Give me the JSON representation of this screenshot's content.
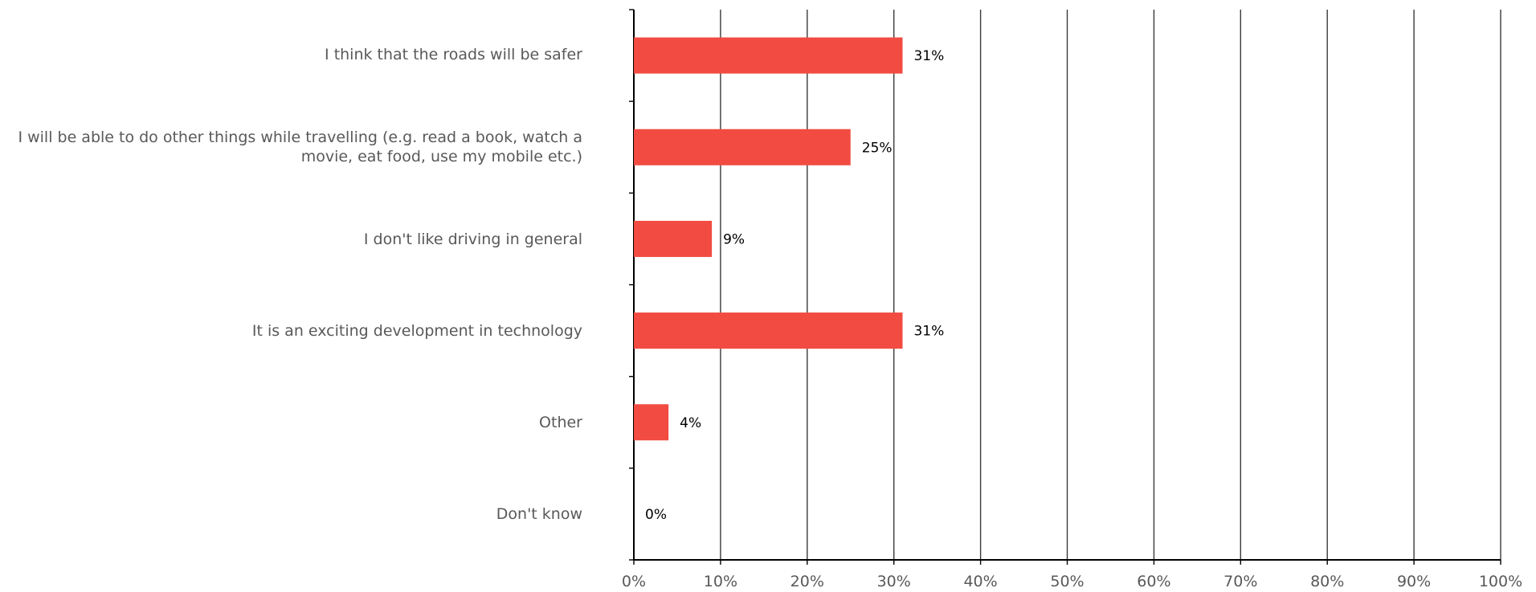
{
  "chart_data": {
    "type": "bar",
    "orientation": "horizontal",
    "categories": [
      "I think that the roads will be safer",
      "I will be able to do other things while travelling (e.g. read a book, watch a movie, eat food, use my mobile etc.)",
      "I don't like driving in general",
      "It is an exciting development in technology",
      "Other",
      "Don't know"
    ],
    "values": [
      31,
      25,
      9,
      31,
      4,
      0
    ],
    "data_labels": [
      "31%",
      "25%",
      "9%",
      "31%",
      "4%",
      "0%"
    ],
    "x_ticks": [
      "0%",
      "10%",
      "20%",
      "30%",
      "40%",
      "50%",
      "60%",
      "70%",
      "80%",
      "90%",
      "100%"
    ],
    "xlim": [
      0,
      100
    ],
    "grid": true,
    "legend": "none",
    "bar_color": "#f24b41"
  }
}
